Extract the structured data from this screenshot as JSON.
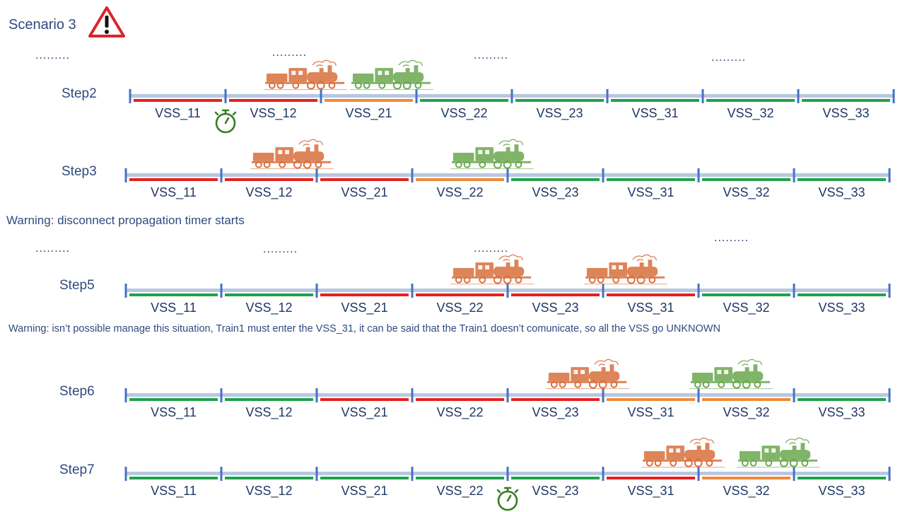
{
  "scenario_title": "Scenario 3",
  "icons": {
    "warning": "warning-triangle-icon",
    "timer": "stopwatch-icon",
    "train": "steam-locomotive-icon"
  },
  "colors": {
    "occupied": "#e8201d",
    "free": "#1fa34a",
    "ambiguous": "#ef8a37",
    "rail": "#b8c8e0",
    "post": "#4472c4",
    "train1": "#d86f3c",
    "train2": "#6aa84f",
    "timer": "#3a7d22"
  },
  "ellipsis": ".........",
  "warnings": [
    "Warning: disconnect propagation timer starts",
    "Warning: isn’t possible manage this situation, Train1 must enter the VSS_31, it can be said that the Train1 doesn’t comunicate, so all the VSS go UNKNOWN"
  ],
  "vss_names": [
    "VSS_11",
    "VSS_12",
    "VSS_21",
    "VSS_22",
    "VSS_23",
    "VSS_31",
    "VSS_32",
    "VSS_33"
  ],
  "steps": [
    {
      "label": "Step2",
      "states": [
        "occupied",
        "occupied",
        "ambiguous",
        "free",
        "free",
        "free",
        "free",
        "free"
      ],
      "trains": [
        {
          "id": "train1",
          "position": 1.4
        },
        {
          "id": "train2",
          "position": 2.3
        }
      ],
      "timer_at": 1
    },
    {
      "label": "Step3",
      "states": [
        "occupied",
        "occupied",
        "occupied",
        "ambiguous",
        "free",
        "free",
        "free",
        "free"
      ],
      "trains": [
        {
          "id": "train1",
          "position": 1.3
        },
        {
          "id": "train2",
          "position": 3.4
        }
      ],
      "timer_at": null
    },
    {
      "label": "Step5",
      "states": [
        "free",
        "free",
        "occupied",
        "occupied",
        "occupied",
        "occupied",
        "free",
        "free"
      ],
      "trains": [
        {
          "id": "train1",
          "position": 3.4
        },
        {
          "id": "train1",
          "position": 4.8
        }
      ],
      "timer_at": null
    },
    {
      "label": "Step6",
      "states": [
        "free",
        "free",
        "occupied",
        "occupied",
        "occupied",
        "ambiguous",
        "ambiguous",
        "free"
      ],
      "trains": [
        {
          "id": "train1",
          "position": 4.4
        },
        {
          "id": "train2",
          "position": 5.9
        }
      ],
      "timer_at": null
    },
    {
      "label": "Step7",
      "states": [
        "free",
        "free",
        "free",
        "free",
        "free",
        "occupied",
        "ambiguous",
        "free"
      ],
      "trains": [
        {
          "id": "train1",
          "position": 5.4
        },
        {
          "id": "train2",
          "position": 6.4
        }
      ],
      "timer_at": 4
    }
  ]
}
